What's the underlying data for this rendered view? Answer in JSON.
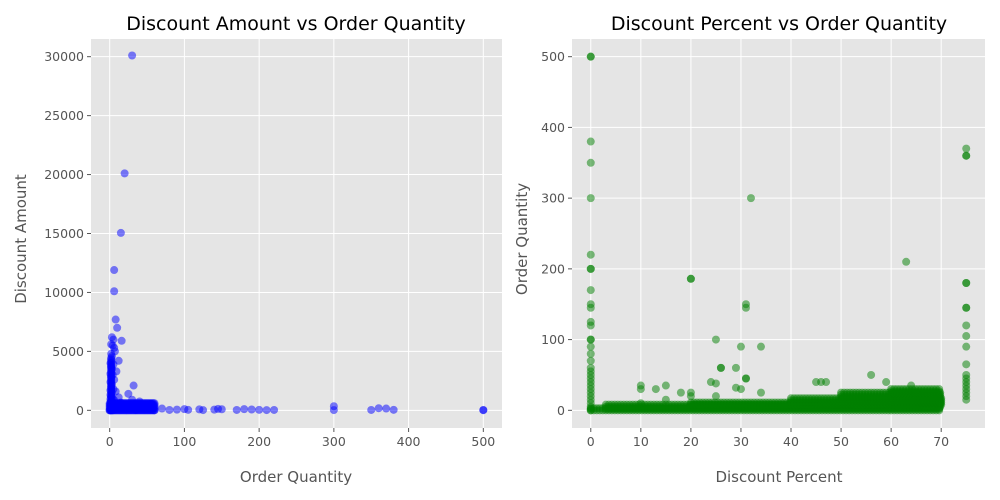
{
  "chart_data": [
    {
      "type": "scatter",
      "title": "Discount Amount vs Order Quantity",
      "xlabel": "Order Quantity",
      "ylabel": "Discount Amount",
      "xlim": [
        -25,
        525
      ],
      "ylim": [
        -1500,
        31500
      ],
      "xticks": [
        0,
        100,
        200,
        300,
        400,
        500
      ],
      "yticks": [
        0,
        5000,
        10000,
        15000,
        20000,
        25000,
        30000
      ],
      "grid": true,
      "color": "#0000ff",
      "opacity": 0.5,
      "points": [
        [
          30,
          30100
        ],
        [
          20,
          20100
        ],
        [
          15,
          15050
        ],
        [
          6,
          11900
        ],
        [
          6,
          10100
        ],
        [
          8,
          7700
        ],
        [
          10,
          7000
        ],
        [
          3,
          6200
        ],
        [
          5,
          6000
        ],
        [
          16,
          5900
        ],
        [
          2,
          5600
        ],
        [
          4,
          5500
        ],
        [
          6,
          5300
        ],
        [
          7,
          5000
        ],
        [
          2,
          4800
        ],
        [
          3,
          4600
        ],
        [
          12,
          4200
        ],
        [
          1,
          4000
        ],
        [
          5,
          3900
        ],
        [
          2,
          3700
        ],
        [
          3,
          3500
        ],
        [
          9,
          3300
        ],
        [
          1,
          3100
        ],
        [
          4,
          3000
        ],
        [
          2,
          2800
        ],
        [
          6,
          2600
        ],
        [
          1,
          2400
        ],
        [
          3,
          2200
        ],
        [
          32,
          2100
        ],
        [
          2,
          2000
        ],
        [
          5,
          1800
        ],
        [
          1,
          1700
        ],
        [
          8,
          1600
        ],
        [
          3,
          1500
        ],
        [
          25,
          1400
        ],
        [
          1,
          1300
        ],
        [
          2,
          1200
        ],
        [
          12,
          1100
        ],
        [
          4,
          1000
        ],
        [
          1,
          950
        ],
        [
          30,
          900
        ],
        [
          6,
          850
        ],
        [
          2,
          800
        ],
        [
          40,
          750
        ],
        [
          3,
          700
        ],
        [
          15,
          650
        ],
        [
          1,
          600
        ],
        [
          55,
          550
        ],
        [
          5,
          500
        ],
        [
          9,
          450
        ],
        [
          2,
          400
        ],
        [
          20,
          350
        ],
        [
          1,
          300
        ],
        [
          45,
          250
        ],
        [
          3,
          200
        ],
        [
          10,
          150
        ],
        [
          1,
          100
        ],
        [
          7,
          50
        ],
        [
          2,
          20
        ],
        [
          4,
          0
        ],
        [
          0,
          0
        ],
        [
          1,
          10
        ],
        [
          35,
          20
        ],
        [
          60,
          10
        ],
        [
          70,
          150
        ],
        [
          80,
          30
        ],
        [
          90,
          60
        ],
        [
          100,
          100
        ],
        [
          105,
          40
        ],
        [
          120,
          80
        ],
        [
          125,
          20
        ],
        [
          140,
          60
        ],
        [
          145,
          120
        ],
        [
          150,
          90
        ],
        [
          170,
          30
        ],
        [
          180,
          100
        ],
        [
          190,
          70
        ],
        [
          200,
          40
        ],
        [
          210,
          20
        ],
        [
          220,
          30
        ],
        [
          300,
          350
        ],
        [
          300,
          20
        ],
        [
          350,
          30
        ],
        [
          360,
          180
        ],
        [
          370,
          150
        ],
        [
          380,
          40
        ],
        [
          500,
          10
        ],
        [
          500,
          30
        ]
      ]
    },
    {
      "type": "scatter",
      "title": "Discount Percent vs Order Quantity",
      "xlabel": "Discount Percent",
      "ylabel": "Order Quantity",
      "xlim": [
        -3.75,
        78.75
      ],
      "ylim": [
        -25,
        525
      ],
      "xticks": [
        0,
        10,
        20,
        30,
        40,
        50,
        60,
        70
      ],
      "yticks": [
        0,
        100,
        200,
        300,
        400,
        500
      ],
      "grid": true,
      "color": "#008000",
      "opacity": 0.5,
      "points": [
        [
          0,
          500
        ],
        [
          0,
          500
        ],
        [
          0,
          380
        ],
        [
          0,
          350
        ],
        [
          0,
          300
        ],
        [
          0,
          220
        ],
        [
          0,
          200
        ],
        [
          0,
          200
        ],
        [
          0,
          170
        ],
        [
          0,
          150
        ],
        [
          0,
          145
        ],
        [
          0,
          125
        ],
        [
          0,
          120
        ],
        [
          0,
          100
        ],
        [
          0,
          100
        ],
        [
          0,
          90
        ],
        [
          0,
          80
        ],
        [
          0,
          70
        ],
        [
          0,
          60
        ],
        [
          0,
          55
        ],
        [
          0,
          50
        ],
        [
          0,
          45
        ],
        [
          0,
          40
        ],
        [
          0,
          35
        ],
        [
          0,
          30
        ],
        [
          0,
          25
        ],
        [
          0,
          20
        ],
        [
          0,
          15
        ],
        [
          0,
          10
        ],
        [
          0,
          5
        ],
        [
          0,
          2
        ],
        [
          0,
          0
        ],
        [
          10,
          35
        ],
        [
          10,
          30
        ],
        [
          10,
          10
        ],
        [
          13,
          30
        ],
        [
          15,
          35
        ],
        [
          15,
          15
        ],
        [
          18,
          25
        ],
        [
          20,
          186
        ],
        [
          20,
          186
        ],
        [
          20,
          25
        ],
        [
          20,
          20
        ],
        [
          24,
          40
        ],
        [
          25,
          38
        ],
        [
          25,
          100
        ],
        [
          25,
          20
        ],
        [
          26,
          60
        ],
        [
          26,
          60
        ],
        [
          29,
          32
        ],
        [
          29,
          60
        ],
        [
          30,
          30
        ],
        [
          30,
          90
        ],
        [
          31,
          150
        ],
        [
          31,
          145
        ],
        [
          31,
          45
        ],
        [
          31,
          45
        ],
        [
          32,
          300
        ],
        [
          34,
          25
        ],
        [
          34,
          90
        ],
        [
          45,
          40
        ],
        [
          46,
          40
        ],
        [
          47,
          40
        ],
        [
          56,
          50
        ],
        [
          59,
          40
        ],
        [
          63,
          210
        ],
        [
          64,
          35
        ],
        [
          65,
          25
        ],
        [
          75,
          370
        ],
        [
          75,
          360
        ],
        [
          75,
          360
        ],
        [
          75,
          180
        ],
        [
          75,
          180
        ],
        [
          75,
          145
        ],
        [
          75,
          145
        ],
        [
          75,
          120
        ],
        [
          75,
          105
        ],
        [
          75,
          90
        ],
        [
          75,
          65
        ],
        [
          75,
          50
        ],
        [
          75,
          45
        ],
        [
          75,
          40
        ],
        [
          75,
          35
        ],
        [
          75,
          30
        ],
        [
          75,
          25
        ],
        [
          75,
          20
        ],
        [
          75,
          15
        ]
      ],
      "bands": [
        [
          0,
          70,
          0,
          3
        ],
        [
          3,
          70,
          2,
          8
        ],
        [
          20,
          70,
          5,
          12
        ],
        [
          40,
          70,
          8,
          18
        ],
        [
          50,
          70,
          10,
          25
        ],
        [
          60,
          70,
          12,
          30
        ]
      ]
    }
  ]
}
